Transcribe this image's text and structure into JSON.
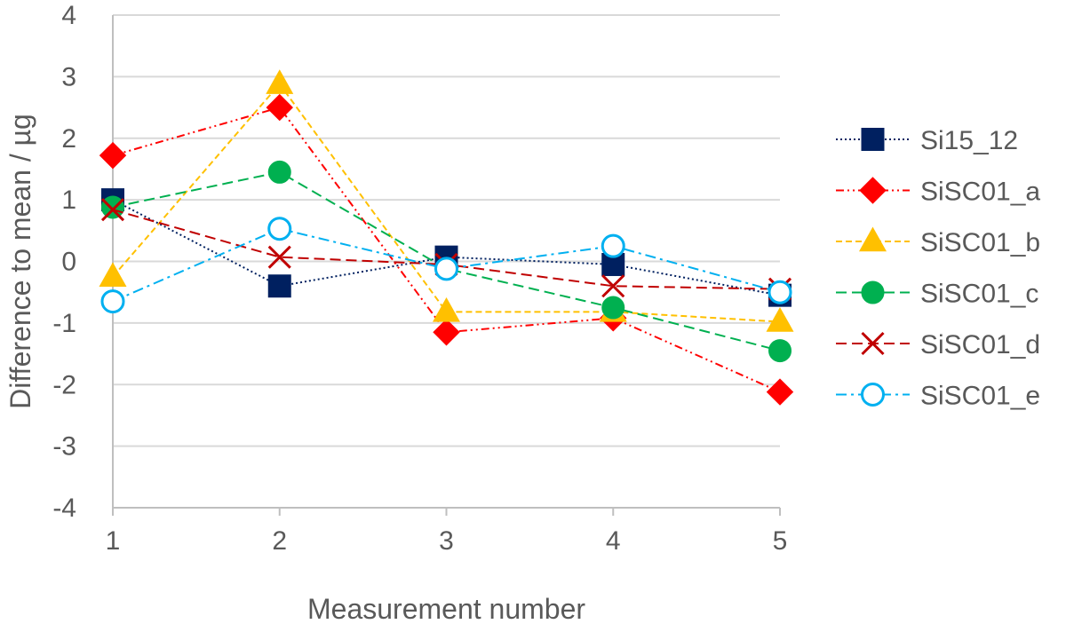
{
  "chart_data": {
    "type": "line",
    "title": "",
    "xlabel": "Measurement number",
    "ylabel": "Difference to mean / µg",
    "x": [
      1,
      2,
      3,
      4,
      5
    ],
    "x_tick_labels": [
      "1",
      "2",
      "3",
      "4",
      "5"
    ],
    "ylim": [
      -4,
      4
    ],
    "y_ticks": [
      -4,
      -3,
      -2,
      -1,
      0,
      1,
      2,
      3,
      4
    ],
    "y_tick_labels": [
      "-4",
      "-3",
      "-2",
      "-1",
      "0",
      "1",
      "2",
      "3",
      "4"
    ],
    "grid": "horizontal",
    "legend_position": "right",
    "series": [
      {
        "name": "Si15_12",
        "values": [
          1.0,
          -0.4,
          0.07,
          -0.05,
          -0.55
        ],
        "color": "#002060",
        "marker": "square",
        "filled": true,
        "dash": "dotted"
      },
      {
        "name": "SiSC01_a",
        "values": [
          1.72,
          2.5,
          -1.15,
          -0.92,
          -2.12
        ],
        "color": "#ff0000",
        "marker": "diamond",
        "filled": true,
        "dash": "dash-dot-dot"
      },
      {
        "name": "SiSC01_b",
        "values": [
          -0.25,
          2.88,
          -0.82,
          -0.82,
          -0.98
        ],
        "color": "#ffc000",
        "marker": "triangle",
        "filled": true,
        "dash": "dashed"
      },
      {
        "name": "SiSC01_c",
        "values": [
          0.88,
          1.45,
          -0.12,
          -0.75,
          -1.45
        ],
        "color": "#00b050",
        "marker": "circle",
        "filled": true,
        "dash": "long-dash"
      },
      {
        "name": "SiSC01_d",
        "values": [
          0.84,
          0.07,
          -0.05,
          -0.4,
          -0.45
        ],
        "color": "#c00000",
        "marker": "x",
        "filled": false,
        "dash": "long-dash"
      },
      {
        "name": "SiSC01_e",
        "values": [
          -0.65,
          0.53,
          -0.12,
          0.25,
          -0.5
        ],
        "color": "#00b0f0",
        "marker": "circle",
        "filled": false,
        "dash": "dash-dot"
      }
    ]
  }
}
